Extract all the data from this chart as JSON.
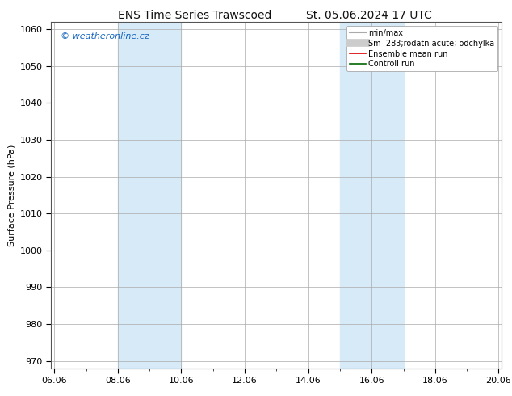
{
  "title_left": "ENS Time Series Trawscoed",
  "title_right": "St. 05.06.2024 17 UTC",
  "ylabel": "Surface Pressure (hPa)",
  "ylim": [
    968,
    1062
  ],
  "yticks": [
    970,
    980,
    990,
    1000,
    1010,
    1020,
    1030,
    1040,
    1050,
    1060
  ],
  "xtick_labels": [
    "06.06",
    "08.06",
    "10.06",
    "12.06",
    "14.06",
    "16.06",
    "18.06",
    "20.06"
  ],
  "xtick_values": [
    0,
    2,
    4,
    6,
    8,
    10,
    12,
    14
  ],
  "xlim": [
    -0.1,
    14.1
  ],
  "shaded_bands": [
    {
      "xmin": 2,
      "xmax": 4
    },
    {
      "xmin": 9,
      "xmax": 11
    }
  ],
  "shade_color": "#d6eaf8",
  "watermark": "© weatheronline.cz",
  "watermark_color": "#1565c0",
  "legend_items": [
    {
      "label": "min/max",
      "color": "#aaaaaa",
      "lw": 1.5,
      "style": "solid"
    },
    {
      "label": "Sm  283;rodatn acute; odchylka",
      "color": "#cccccc",
      "lw": 7,
      "style": "solid"
    },
    {
      "label": "Ensemble mean run",
      "color": "#dd0000",
      "lw": 1.2,
      "style": "solid"
    },
    {
      "label": "Controll run",
      "color": "#006600",
      "lw": 1.2,
      "style": "solid"
    }
  ],
  "background_color": "#ffffff",
  "grid_color": "#aaaaaa",
  "title_fontsize": 10,
  "tick_fontsize": 8,
  "ylabel_fontsize": 8,
  "legend_fontsize": 7,
  "watermark_fontsize": 8
}
